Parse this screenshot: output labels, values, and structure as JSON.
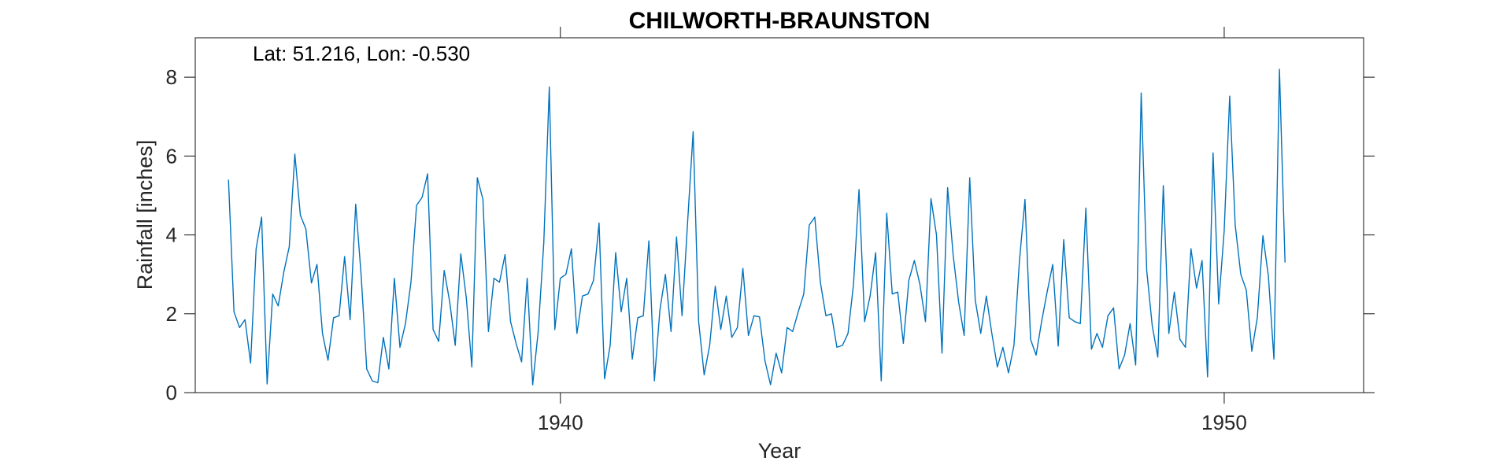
{
  "chart_data": {
    "type": "line",
    "title": "CHILWORTH-BRAUNSTON",
    "annotation": "Lat: 51.216, Lon: -0.530",
    "xlabel": "Year",
    "ylabel": "Rainfall [inches]",
    "xlim": [
      1934.5,
      1952.1
    ],
    "ylim": [
      0,
      9
    ],
    "xticks": [
      1940,
      1950
    ],
    "yticks": [
      0,
      2,
      4,
      6,
      8
    ],
    "grid": false,
    "line_color": "#0072BD",
    "series": [
      {
        "name": "Rainfall",
        "x_start": 1935.0,
        "x_step": 0.08333,
        "values": [
          5.4,
          2.05,
          1.65,
          1.85,
          0.75,
          3.65,
          4.45,
          0.22,
          2.5,
          2.2,
          3.05,
          3.7,
          6.05,
          4.5,
          4.15,
          2.78,
          3.25,
          1.5,
          0.82,
          1.9,
          1.95,
          3.45,
          1.85,
          4.78,
          2.95,
          0.6,
          0.3,
          0.25,
          1.4,
          0.6,
          2.9,
          1.15,
          1.75,
          2.8,
          4.75,
          4.95,
          5.55,
          1.6,
          1.3,
          3.1,
          2.3,
          1.2,
          3.52,
          2.4,
          0.65,
          5.45,
          4.9,
          1.55,
          2.9,
          2.8,
          3.5,
          1.8,
          1.25,
          0.78,
          2.9,
          0.2,
          1.55,
          3.8,
          7.75,
          1.6,
          2.9,
          3.0,
          3.65,
          1.5,
          2.45,
          2.5,
          2.85,
          4.3,
          0.35,
          1.2,
          3.55,
          2.05,
          2.9,
          0.85,
          1.9,
          1.95,
          3.85,
          0.3,
          2.1,
          3.0,
          1.55,
          3.95,
          1.95,
          4.3,
          6.62,
          1.8,
          0.45,
          1.2,
          2.7,
          1.6,
          2.45,
          1.4,
          1.65,
          3.15,
          1.45,
          1.95,
          1.92,
          0.8,
          0.2,
          1.0,
          0.5,
          1.65,
          1.55,
          2.05,
          2.5,
          4.25,
          4.45,
          2.8,
          1.95,
          2.0,
          1.15,
          1.2,
          1.5,
          2.75,
          5.15,
          1.8,
          2.45,
          3.55,
          0.3,
          4.55,
          2.5,
          2.55,
          1.25,
          2.85,
          3.35,
          2.75,
          1.8,
          4.92,
          4.0,
          1.0,
          5.2,
          3.5,
          2.3,
          1.45,
          5.45,
          2.35,
          1.5,
          2.45,
          1.5,
          0.65,
          1.15,
          0.5,
          1.2,
          3.35,
          4.9,
          1.35,
          0.95,
          1.8,
          2.55,
          3.25,
          1.18,
          3.88,
          1.9,
          1.8,
          1.75,
          4.68,
          1.1,
          1.5,
          1.15,
          1.95,
          2.15,
          0.6,
          0.95,
          1.75,
          0.7,
          7.6,
          3.1,
          1.7,
          0.9,
          5.25,
          1.5,
          2.55,
          1.35,
          1.15,
          3.65,
          2.65,
          3.35,
          0.4,
          6.08,
          2.25,
          4.1,
          7.52,
          4.25,
          3.0,
          2.6,
          1.05,
          1.9,
          3.98,
          2.95,
          0.85,
          8.2,
          3.3
        ]
      }
    ]
  }
}
